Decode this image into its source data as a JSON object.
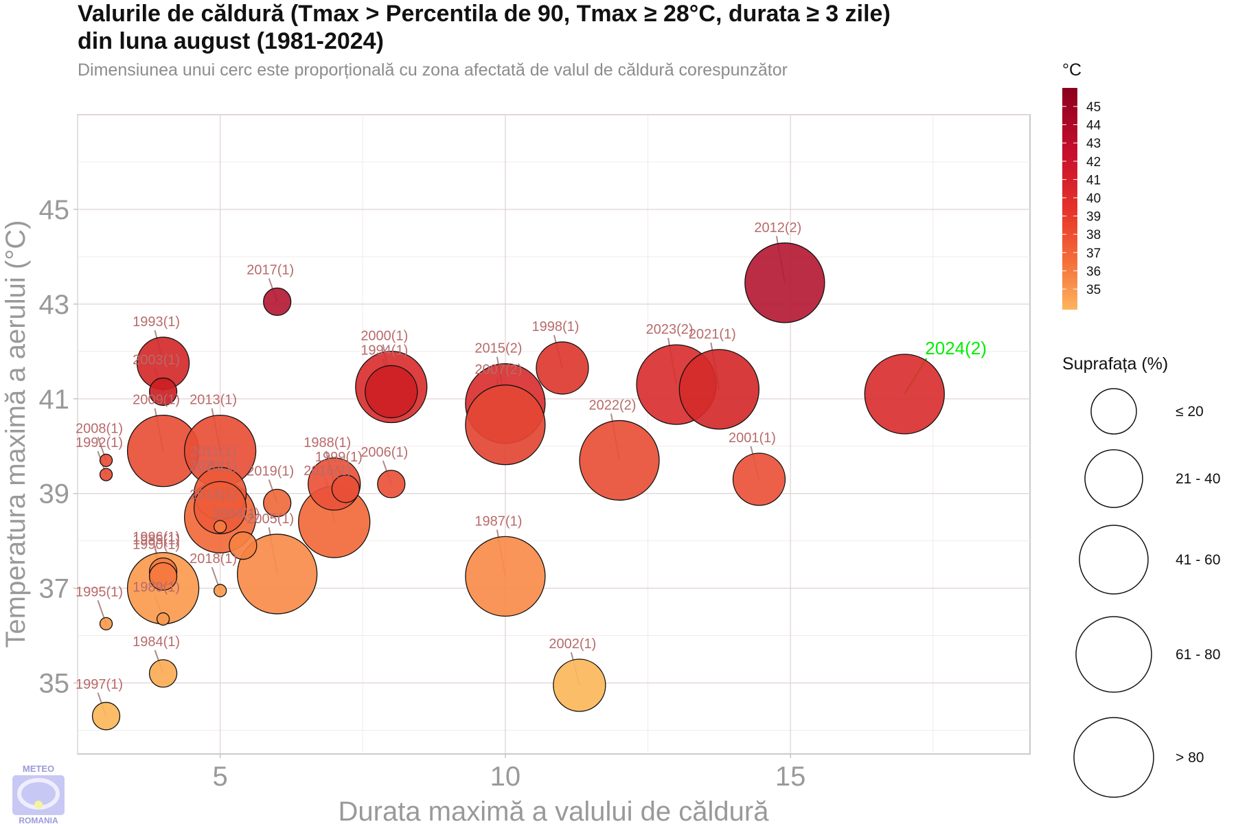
{
  "header": {
    "title_line1": "Valurile de căldură (Tmax > Percentila de 90, Tmax ≥ 28°C, durata ≥ 3 zile)",
    "title_line2": "din luna august (1981-2024)",
    "subtitle": "Dimensiunea unui cerc este proporțională cu zona afectată de valul de căldură corespunzător"
  },
  "logo": {
    "text_top": "METEO",
    "text_bottom": "ROMANIA"
  },
  "chart_data": {
    "type": "scatter",
    "xlabel": "Durata maximă a valului de căldură",
    "ylabel": "Temperatura maximă a aerului (°C)",
    "xlim": [
      2.5,
      19.2
    ],
    "ylim": [
      33.5,
      47
    ],
    "x_ticks": [
      5,
      10,
      15
    ],
    "y_ticks": [
      35,
      37,
      39,
      41,
      43,
      45
    ],
    "grid": true,
    "color_legend": {
      "title": "°C",
      "ticks": [
        45,
        44,
        43,
        42,
        41,
        40,
        39,
        38,
        37,
        36,
        35
      ]
    },
    "size_legend": {
      "title": "Suprafața (%)",
      "classes": [
        "≤ 20",
        "21 - 40",
        "41 - 60",
        "61 - 80",
        "> 80"
      ]
    },
    "highlight_color": "#00ee00",
    "points": [
      {
        "label": "2012(2)",
        "x": 14.9,
        "y": 43.45,
        "size": 4,
        "color": "#b51a35"
      },
      {
        "label": "2017(1)",
        "x": 6.0,
        "y": 43.05,
        "size": 1,
        "color": "#b51a35"
      },
      {
        "label": "1993(1)",
        "x": 4.0,
        "y": 41.75,
        "size": 2,
        "color": "#d42a2a"
      },
      {
        "label": "2003(1)",
        "x": 4.0,
        "y": 41.15,
        "size": 1,
        "color": "#cc1f24"
      },
      {
        "label": "2000(1)",
        "x": 8.0,
        "y": 41.25,
        "size": 3,
        "color": "#d93030"
      },
      {
        "label": "1994(1)",
        "x": 8.0,
        "y": 41.15,
        "size": 2,
        "color": "#cc1f24"
      },
      {
        "label": "1998(1)",
        "x": 11.0,
        "y": 41.65,
        "size": 2,
        "color": "#dd3a30"
      },
      {
        "label": "2015(2)",
        "x": 10.0,
        "y": 40.9,
        "size": 4,
        "color": "#d93030"
      },
      {
        "label": "2007(2)",
        "x": 10.0,
        "y": 40.45,
        "size": 4,
        "color": "#e34634"
      },
      {
        "label": "2023(2)",
        "x": 13.0,
        "y": 41.3,
        "size": 4,
        "color": "#d93030"
      },
      {
        "label": "2021(1)",
        "x": 13.75,
        "y": 41.2,
        "size": 4,
        "color": "#d42a2a"
      },
      {
        "label": "2024(2)",
        "x": 17.0,
        "y": 41.1,
        "size": 4,
        "color": "#d93030",
        "highlight": true
      },
      {
        "label": "2022(2)",
        "x": 12.0,
        "y": 39.7,
        "size": 4,
        "color": "#e84f37"
      },
      {
        "label": "2001(1)",
        "x": 14.45,
        "y": 39.3,
        "size": 2,
        "color": "#ea533a"
      },
      {
        "label": "2008(1)",
        "x": 3.0,
        "y": 39.7,
        "size": 0,
        "color": "#e84f37"
      },
      {
        "label": "1992(1)",
        "x": 3.0,
        "y": 39.4,
        "size": 0,
        "color": "#e84f37"
      },
      {
        "label": "2009(1)",
        "x": 4.0,
        "y": 39.9,
        "size": 3,
        "color": "#e84f37"
      },
      {
        "label": "2013(1)",
        "x": 5.0,
        "y": 39.9,
        "size": 3,
        "color": "#e84f37"
      },
      {
        "label": "2011(1)",
        "x": 5.0,
        "y": 39.0,
        "size": 2,
        "color": "#ec5a3a"
      },
      {
        "label": "2010(1)",
        "x": 5.0,
        "y": 38.7,
        "size": 2,
        "color": "#ee5c3a"
      },
      {
        "label": "2020(1)",
        "x": 5.0,
        "y": 38.5,
        "size": 3,
        "color": "#f26a3b"
      },
      {
        "label": "2014(1)",
        "x": 5.0,
        "y": 38.3,
        "size": 0,
        "color": "#f57b42"
      },
      {
        "label": "2019(1)",
        "x": 6.0,
        "y": 38.8,
        "size": 1,
        "color": "#ef6a3c"
      },
      {
        "label": "1988(1)",
        "x": 7.0,
        "y": 39.2,
        "size": 2,
        "color": "#ea533a"
      },
      {
        "label": "1999(1)",
        "x": 7.2,
        "y": 39.1,
        "size": 1,
        "color": "#e84f37"
      },
      {
        "label": "2016(1)",
        "x": 7.0,
        "y": 38.4,
        "size": 3,
        "color": "#f26a3b"
      },
      {
        "label": "2006(1)",
        "x": 8.0,
        "y": 39.2,
        "size": 1,
        "color": "#ea533a"
      },
      {
        "label": "2004(1)",
        "x": 5.4,
        "y": 37.9,
        "size": 1,
        "color": "#f78142"
      },
      {
        "label": "2005(1)",
        "x": 6.0,
        "y": 37.3,
        "size": 4,
        "color": "#f98c4a"
      },
      {
        "label": "2018(1)",
        "x": 5.0,
        "y": 36.95,
        "size": 0,
        "color": "#f99a4e"
      },
      {
        "label": "1985(1)",
        "x": 4.0,
        "y": 37.35,
        "size": 1,
        "color": "#f57a40"
      },
      {
        "label": "1990(1)",
        "x": 4.0,
        "y": 37.25,
        "size": 1,
        "color": "#f57a40"
      },
      {
        "label": "1996(1)",
        "x": 4.0,
        "y": 37.0,
        "size": 3,
        "color": "#fb9a4f"
      },
      {
        "label": "1989(1)",
        "x": 4.0,
        "y": 36.35,
        "size": 0,
        "color": "#f99a4e"
      },
      {
        "label": "1995(1)",
        "x": 3.0,
        "y": 36.25,
        "size": 0,
        "color": "#f99a4e"
      },
      {
        "label": "1987(1)",
        "x": 10.0,
        "y": 37.25,
        "size": 4,
        "color": "#f98c4a"
      },
      {
        "label": "1984(1)",
        "x": 4.0,
        "y": 35.2,
        "size": 1,
        "color": "#fbac56"
      },
      {
        "label": "2002(1)",
        "x": 11.3,
        "y": 34.95,
        "size": 2,
        "color": "#fcb75b"
      },
      {
        "label": "1997(1)",
        "x": 3.0,
        "y": 34.3,
        "size": 1,
        "color": "#fcb75b"
      }
    ]
  }
}
